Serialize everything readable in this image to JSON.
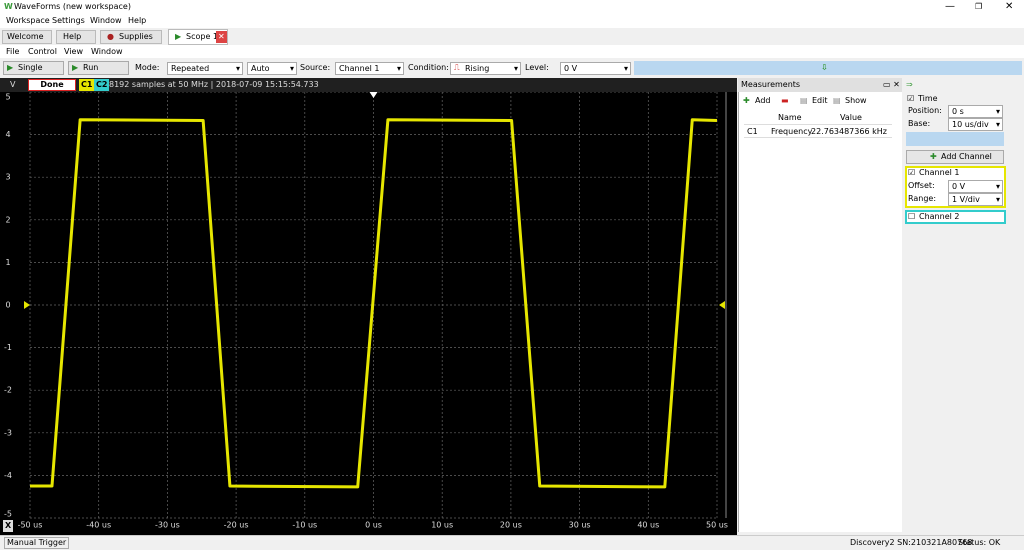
{
  "window": {
    "title": "WaveForms  (new workspace)",
    "menu": [
      "Workspace",
      "Settings",
      "Window",
      "Help"
    ]
  },
  "tabs": [
    "Welcome",
    "Help",
    "Supplies",
    "Scope 1"
  ],
  "scope_menu": [
    "File",
    "Control",
    "View",
    "Window"
  ],
  "toolbar": {
    "single": "Single",
    "run": "Run",
    "mode_label": "Mode:",
    "mode": "Repeated",
    "trigger_mode": "Auto",
    "source_label": "Source:",
    "source": "Channel 1",
    "condition_label": "Condition:",
    "condition": "Rising",
    "level_label": "Level:",
    "level": "0 V"
  },
  "plot_header": {
    "status": "Done",
    "channel_2": "C2",
    "info": "8192 samples at 50 MHz | 2018-07-09 15:15:54.733",
    "x_button": "X"
  },
  "chart_data": {
    "type": "line",
    "y_label": "V",
    "x": [
      -50,
      -46.8,
      -42.7,
      -24.8,
      -20.9,
      -2.3,
      2.1,
      20.1,
      24.2,
      42.4,
      46.4,
      50
    ],
    "series": [
      {
        "name": "C1",
        "color": "#e6e600",
        "values": [
          -4.25,
          -4.25,
          4.35,
          4.33,
          -4.25,
          -4.27,
          4.35,
          4.33,
          -4.25,
          -4.27,
          4.35,
          4.33
        ]
      }
    ],
    "xlim": [
      -50,
      50
    ],
    "ylim": [
      -5,
      5
    ],
    "xticks": [
      {
        "value": -50,
        "label": "-50 us"
      },
      {
        "value": -40,
        "label": "-40 us"
      },
      {
        "value": -30,
        "label": "-30 us"
      },
      {
        "value": -20,
        "label": "-20 us"
      },
      {
        "value": -10,
        "label": "-10 us"
      },
      {
        "value": 0,
        "label": "0 us"
      },
      {
        "value": 10,
        "label": "10 us"
      },
      {
        "value": 20,
        "label": "20 us"
      },
      {
        "value": 30,
        "label": "30 us"
      },
      {
        "value": 40,
        "label": "40 us"
      },
      {
        "value": 50,
        "label": "50 us"
      }
    ],
    "yticks": [
      -5,
      -4,
      -3,
      -2,
      -1,
      0,
      1,
      2,
      3,
      4,
      5
    ],
    "grid": true
  },
  "measurements": {
    "title": "Measurements",
    "add": "Add",
    "edit": "Edit",
    "show": "Show",
    "columns": [
      "Name",
      "Value"
    ],
    "rows": [
      [
        "C1",
        "Frequency",
        "22.763487366 kHz"
      ]
    ]
  },
  "settings": {
    "time": "Time",
    "position_label": "Position:",
    "position": "0 s",
    "base_label": "Base:",
    "base": "10 us/div",
    "add_channel": "Add Channel",
    "channel_1": "Channel 1",
    "offset_label": "Offset:",
    "offset": "0 V",
    "range_label": "Range:",
    "range": "1 V/div",
    "channel_2": "Channel 2"
  },
  "status_bar": {
    "left": "Manual Trigger",
    "device": "Discovery2 SN:210321A80768",
    "status": "Status: OK"
  }
}
